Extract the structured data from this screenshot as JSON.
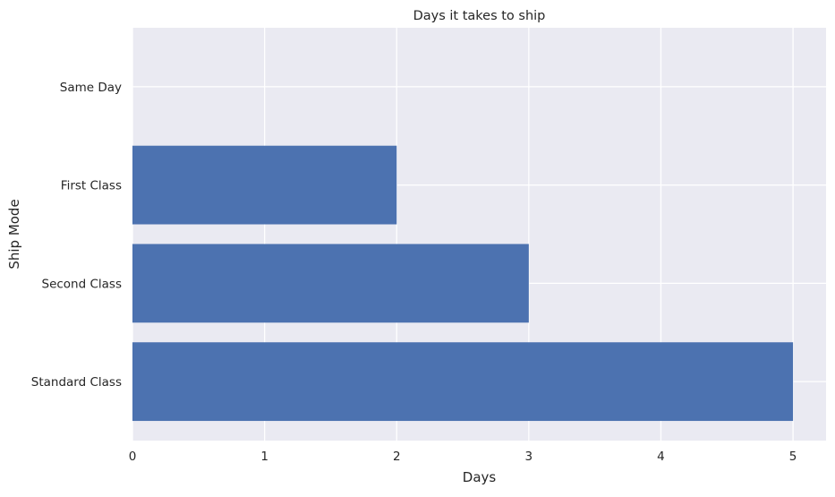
{
  "chart_data": {
    "type": "bar",
    "orientation": "horizontal",
    "title": "Days it takes to ship",
    "xlabel": "Days",
    "ylabel": "Ship Mode",
    "categories": [
      "Standard Class",
      "Second Class",
      "First Class",
      "Same Day"
    ],
    "values": [
      5,
      3,
      2,
      0
    ],
    "xlim": [
      0,
      5.25
    ],
    "xticks": [
      0,
      1,
      2,
      3,
      4,
      5
    ],
    "grid": true,
    "bar_color": "#4c72b0",
    "background_color": "#eaeaf2",
    "grid_color": "#ffffff"
  }
}
